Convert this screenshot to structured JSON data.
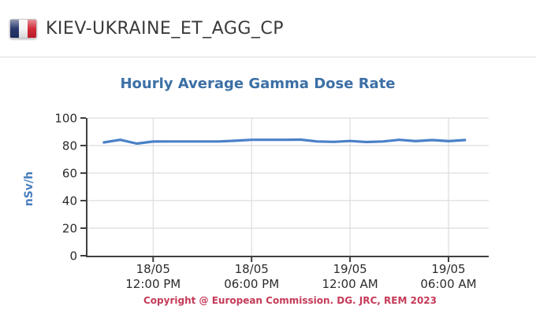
{
  "header": {
    "title": "KIEV-UKRAINE_ET_AGG_CP",
    "flag_icon": "french-flag"
  },
  "chart_data": {
    "type": "line",
    "title": "Hourly Average Gamma Dose Rate",
    "xlabel": "",
    "ylabel": "nSv/h",
    "ylim": [
      0,
      100
    ],
    "y_ticks": [
      0,
      20,
      40,
      60,
      80,
      100
    ],
    "x_domain_hours": [
      8.0,
      32.45
    ],
    "x_tick_hours": [
      12,
      18,
      24,
      30
    ],
    "x_tick_labels": [
      [
        "18/05",
        "12:00 PM"
      ],
      [
        "18/05",
        "06:00 PM"
      ],
      [
        "19/05",
        "12:00 AM"
      ],
      [
        "19/05",
        "06:00 AM"
      ]
    ],
    "grid": true,
    "legend": "none",
    "series": [
      {
        "name": "Hourly average gamma dose rate",
        "x_hours": [
          9,
          10,
          11,
          12,
          13,
          14,
          15,
          16,
          17,
          18,
          19,
          20,
          21,
          22,
          23,
          24,
          25,
          26,
          27,
          28,
          29,
          30,
          31
        ],
        "values": [
          82.3,
          84.2,
          81.4,
          82.9,
          83.0,
          83.0,
          83.0,
          83.0,
          83.5,
          84.2,
          84.2,
          84.2,
          84.3,
          83.0,
          82.7,
          83.3,
          82.6,
          83.0,
          84.2,
          83.2,
          84.0,
          83.2,
          84.0
        ]
      }
    ],
    "copyright": "Copyright @ European Commission. DG. JRC, REM 2023"
  },
  "colors": {
    "title_blue": "#3c6fa5",
    "axis_label_blue": "#4a7ebd",
    "line_blue": "#4a80c8",
    "copyright_red": "#c43b58",
    "tick_text": "#2b2b2b",
    "grid": "#d6d6d6",
    "axis": "#3f3f3f"
  }
}
